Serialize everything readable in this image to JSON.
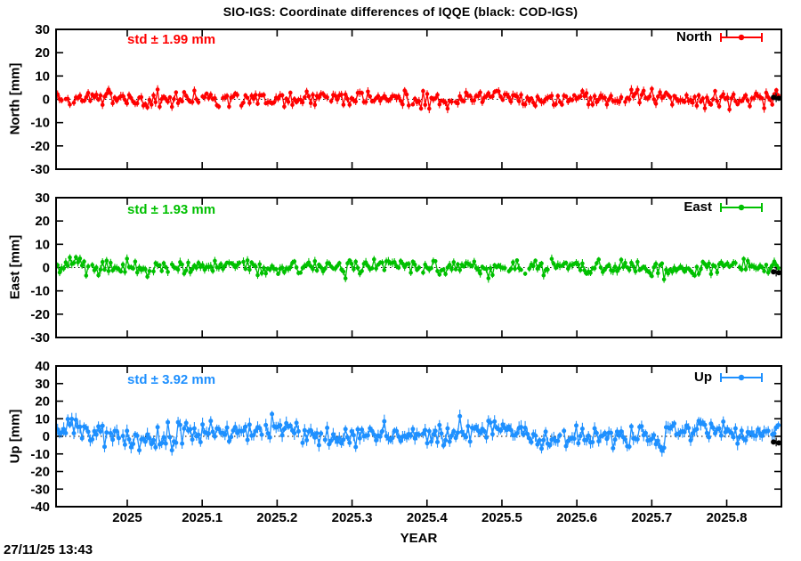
{
  "timestamp": "27/11/25 13:43",
  "chart_data": {
    "type": "scatter",
    "title": "SIO-IGS: Coordinate differences of IQQE (black: COD-IGS)",
    "xlabel": "YEAR",
    "xlim": [
      2024.905,
      2025.873
    ],
    "x_ticks": [
      2025.0,
      2025.1,
      2025.2,
      2025.3,
      2025.4,
      2025.5,
      2025.6,
      2025.7,
      2025.8
    ],
    "x_tick_labels": [
      "2025",
      "2025.1",
      "2025.2",
      "2025.3",
      "2025.4",
      "2025.5",
      "2025.6",
      "2025.7",
      "2025.8"
    ],
    "sampling": "daily points with error bars, gnuplot errorlines style",
    "n_points": 354,
    "grid": false,
    "zero_line_style": "black dotted at y=0",
    "legend_position": "top-right inside each panel",
    "panels": [
      {
        "id": "north",
        "legend": "North",
        "ylabel": "North [mm]",
        "std_label": "std ± 1.99 mm",
        "std_mm": 1.99,
        "mean_mm": 0.4,
        "color": "#ff0000",
        "ylim": [
          -30,
          30
        ],
        "ytick_step": 10,
        "ytick_labels": [
          "30",
          "20",
          "10",
          "0",
          "-10",
          "-20",
          "-30"
        ],
        "seed": 101,
        "cod_igs_point": {
          "x": 2025.866,
          "y": 0.8,
          "err_mm": 2.0,
          "color": "#000000"
        }
      },
      {
        "id": "east",
        "legend": "East",
        "ylabel": "East [mm]",
        "std_label": "std ± 1.93 mm",
        "std_mm": 1.93,
        "mean_mm": 0.3,
        "color": "#00c000",
        "ylim": [
          -30,
          30
        ],
        "ytick_step": 10,
        "ytick_labels": [
          "30",
          "20",
          "10",
          "0",
          "-10",
          "-20",
          "-30"
        ],
        "seed": 202,
        "cod_igs_point": {
          "x": 2025.866,
          "y": -1.8,
          "err_mm": 2.0,
          "color": "#000000"
        }
      },
      {
        "id": "up",
        "legend": "Up",
        "ylabel": "Up [mm]",
        "std_label": "std ± 3.92 mm",
        "std_mm": 3.92,
        "mean_mm": 1.2,
        "color": "#1e90ff",
        "ylim": [
          -40,
          40
        ],
        "ytick_step": 10,
        "ytick_labels": [
          "40",
          "30",
          "20",
          "10",
          "0",
          "-10",
          "-20",
          "-30",
          "-40"
        ],
        "seed": 303,
        "cod_igs_point": {
          "x": 2025.866,
          "y": -3.2,
          "err_mm": 2.5,
          "color": "#000000"
        }
      }
    ]
  }
}
